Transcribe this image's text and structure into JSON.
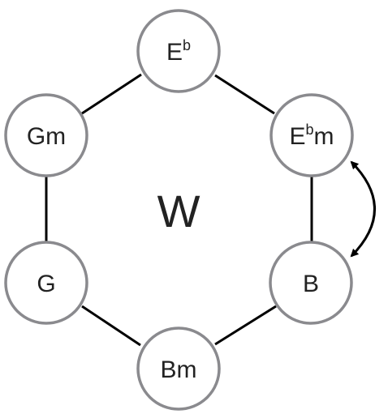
{
  "diagram": {
    "center_label": "W",
    "nodes": [
      {
        "id": "eb",
        "base": "E",
        "sup": "b",
        "suffix": ""
      },
      {
        "id": "ebm",
        "base": "E",
        "sup": "b",
        "suffix": "m"
      },
      {
        "id": "b",
        "base": "B",
        "sup": "",
        "suffix": ""
      },
      {
        "id": "bm",
        "base": "Bm",
        "sup": "",
        "suffix": ""
      },
      {
        "id": "g",
        "base": "G",
        "sup": "",
        "suffix": ""
      },
      {
        "id": "gm",
        "base": "Gm",
        "sup": "",
        "suffix": ""
      }
    ],
    "edges": [
      [
        "eb",
        "ebm"
      ],
      [
        "ebm",
        "b"
      ],
      [
        "b",
        "bm"
      ],
      [
        "bm",
        "g"
      ],
      [
        "g",
        "gm"
      ],
      [
        "gm",
        "eb"
      ]
    ],
    "arrows": [
      {
        "from": "ebm",
        "to": "b",
        "bidirectional": true
      }
    ],
    "colors": {
      "node_stroke": "#8a8a8e",
      "edge": "#000000",
      "text": "#222222"
    }
  }
}
